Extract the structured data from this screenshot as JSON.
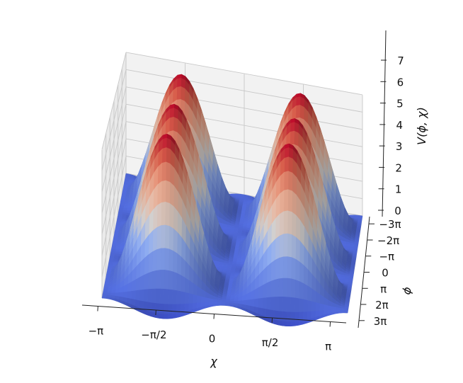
{
  "chart_data": {
    "type": "surface",
    "function": "V(phi, chi) = (1 - cos(2*chi)) * (1.6 + 2*cos(phi))",
    "xlabel": "χ",
    "ylabel": "ϕ",
    "zlabel": "V(ϕ, χ)",
    "xlim": [
      -3.14159,
      3.14159
    ],
    "ylim": [
      -9.42478,
      9.42478
    ],
    "zlim": [
      0,
      7.2
    ],
    "x_ticks": [
      -3.14159,
      -1.5708,
      0,
      1.5708,
      3.14159
    ],
    "x_tick_labels": [
      "−π",
      "−π/2",
      "0",
      "π/2",
      "π"
    ],
    "y_ticks": [
      9.42478,
      6.28319,
      3.14159,
      0,
      -3.14159,
      -6.28319,
      -9.42478
    ],
    "y_tick_labels": [
      "3π",
      "2π",
      "π",
      "0",
      "−π",
      "−2π",
      "−3π"
    ],
    "z_ticks": [
      0,
      1,
      2,
      3,
      4,
      5,
      6,
      7
    ],
    "z_tick_labels": [
      "0",
      "1",
      "2",
      "3",
      "4",
      "5",
      "6",
      "7"
    ],
    "colormap": "coolwarm",
    "colors": {
      "low": "#3b4cc0",
      "mid": "#dddcdc",
      "high": "#b40426"
    },
    "grid": true
  }
}
